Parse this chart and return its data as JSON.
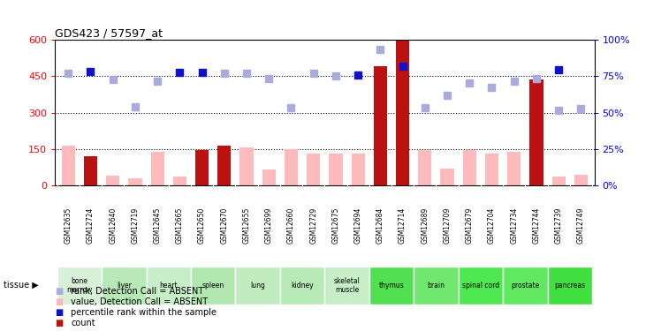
{
  "title": "GDS423 / 57597_at",
  "samples": [
    "GSM12635",
    "GSM12724",
    "GSM12640",
    "GSM12719",
    "GSM12645",
    "GSM12665",
    "GSM12650",
    "GSM12670",
    "GSM12655",
    "GSM12699",
    "GSM12660",
    "GSM12729",
    "GSM12675",
    "GSM12694",
    "GSM12684",
    "GSM12714",
    "GSM12689",
    "GSM12709",
    "GSM12679",
    "GSM12704",
    "GSM12734",
    "GSM12744",
    "GSM12739",
    "GSM12749"
  ],
  "tissues": [
    {
      "name": "bone\nmarrow",
      "start": 0,
      "end": 2,
      "color": "#d8f0d8"
    },
    {
      "name": "liver",
      "start": 2,
      "end": 4,
      "color": "#b8e8b8"
    },
    {
      "name": "heart",
      "start": 4,
      "end": 6,
      "color": "#c8eec8"
    },
    {
      "name": "spleen",
      "start": 6,
      "end": 8,
      "color": "#b0e8b0"
    },
    {
      "name": "lung",
      "start": 8,
      "end": 10,
      "color": "#c0ecc0"
    },
    {
      "name": "kidney",
      "start": 10,
      "end": 12,
      "color": "#b8eab8"
    },
    {
      "name": "skeletal\nmuscle",
      "start": 12,
      "end": 14,
      "color": "#c8eec8"
    },
    {
      "name": "thymus",
      "start": 14,
      "end": 16,
      "color": "#50e050"
    },
    {
      "name": "brain",
      "start": 16,
      "end": 18,
      "color": "#70e870"
    },
    {
      "name": "spinal cord",
      "start": 18,
      "end": 20,
      "color": "#50e850"
    },
    {
      "name": "prostate",
      "start": 20,
      "end": 22,
      "color": "#60e860"
    },
    {
      "name": "pancreas",
      "start": 22,
      "end": 24,
      "color": "#40e040"
    }
  ],
  "count_values": [
    0,
    120,
    0,
    0,
    0,
    0,
    145,
    165,
    0,
    0,
    0,
    0,
    0,
    0,
    490,
    595,
    0,
    0,
    0,
    0,
    0,
    435,
    0,
    0
  ],
  "absent_value_bars": [
    165,
    65,
    40,
    30,
    140,
    35,
    0,
    0,
    155,
    65,
    150,
    130,
    130,
    130,
    0,
    0,
    145,
    70,
    145,
    130,
    140,
    0,
    35,
    45
  ],
  "rank_dark_blue": [
    0,
    470,
    0,
    0,
    0,
    465,
    465,
    0,
    0,
    0,
    0,
    0,
    0,
    455,
    0,
    490,
    0,
    0,
    0,
    0,
    0,
    0,
    475,
    0
  ],
  "rank_light_blue": [
    460,
    0,
    435,
    325,
    430,
    0,
    0,
    460,
    460,
    440,
    320,
    460,
    450,
    0,
    560,
    0,
    320,
    370,
    420,
    405,
    430,
    440,
    310,
    315
  ],
  "ylim_left": [
    0,
    600
  ],
  "yticks_left": [
    0,
    150,
    300,
    450,
    600
  ],
  "ytick_labels_left": [
    "0",
    "150",
    "300",
    "450",
    "600"
  ],
  "ytick_labels_right": [
    "0%",
    "25%",
    "50%",
    "75%",
    "100%"
  ],
  "color_count": "#bb1111",
  "color_absent_value": "#ffbbbb",
  "color_rank_dark": "#1111cc",
  "color_rank_light": "#aaaadd",
  "bg_color": "#e8e8e8",
  "sample_area_color": "#d0d0d0",
  "legend_items": [
    {
      "color": "#bb1111",
      "label": "count"
    },
    {
      "color": "#1111cc",
      "label": "percentile rank within the sample"
    },
    {
      "color": "#ffbbbb",
      "label": "value, Detection Call = ABSENT"
    },
    {
      "color": "#aaaadd",
      "label": "rank, Detection Call = ABSENT"
    }
  ],
  "grid_yticks": [
    150,
    300,
    450
  ]
}
